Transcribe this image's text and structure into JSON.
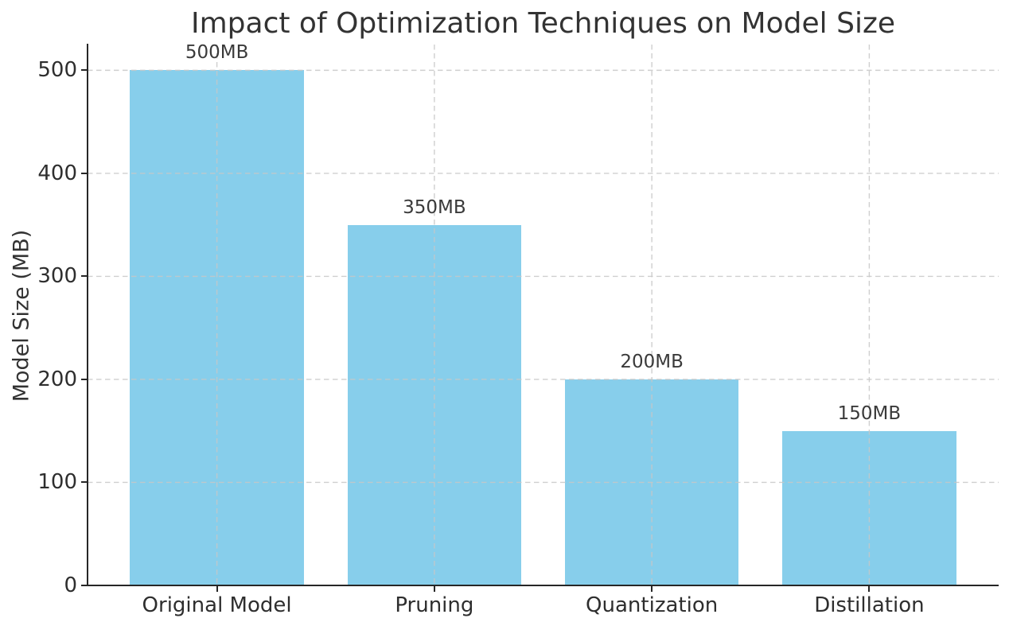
{
  "chart_data": {
    "type": "bar",
    "title": "Impact of Optimization Techniques on Model Size",
    "xlabel": "",
    "ylabel": "Model Size (MB)",
    "categories": [
      "Original Model",
      "Pruning",
      "Quantization",
      "Distillation"
    ],
    "values": [
      500,
      350,
      200,
      150
    ],
    "bar_labels": [
      "500MB",
      "350MB",
      "200MB",
      "150MB"
    ],
    "yticks": [
      0,
      100,
      200,
      300,
      400,
      500
    ],
    "ylim": [
      0,
      525
    ],
    "grid": "dashed, both axes",
    "legend_position": "none",
    "colors": {
      "bar": "#87CEEB",
      "grid": "#c7c7c7",
      "spine": "#262626",
      "text": "#333333",
      "background": "#ffffff"
    }
  }
}
